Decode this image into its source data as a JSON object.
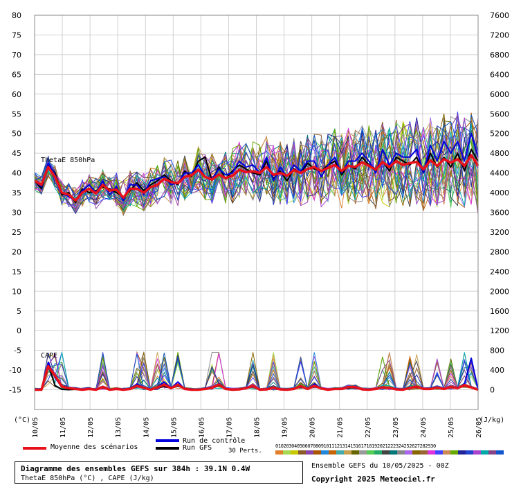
{
  "chart_data": {
    "type": "line",
    "title": "Diagramme des ensembles GEFS sur 384h : 39.1N 0.4W",
    "subtitle": "ThetaE 850hPa (°C) , CAPE (J/kg)",
    "left_axis": {
      "unit_label": "(°C)",
      "ylim": [
        -20,
        80
      ],
      "ticks": [
        80,
        75,
        70,
        65,
        60,
        55,
        50,
        45,
        40,
        35,
        30,
        25,
        20,
        15,
        10,
        5,
        0,
        -5,
        -10,
        -15
      ]
    },
    "right_axis": {
      "unit_label": "(J/kg)",
      "ylim": [
        0,
        7600
      ],
      "ticks": [
        7600,
        7200,
        6800,
        6400,
        6000,
        5600,
        5200,
        4800,
        4400,
        4000,
        3600,
        3200,
        2800,
        2400,
        2000,
        1600,
        1200,
        800,
        400,
        0
      ]
    },
    "x_dates": [
      "10/05",
      "11/05",
      "12/05",
      "13/05",
      "14/05",
      "15/05",
      "16/05",
      "17/05",
      "18/05",
      "19/05",
      "20/05",
      "21/05",
      "22/05",
      "23/05",
      "24/05",
      "25/05",
      "26/05"
    ],
    "panel_labels": {
      "thetae": "ThetaE 850hPa",
      "cape": "CAPE"
    },
    "series": [
      {
        "name": "Moyenne des scénarios",
        "color": "#e8101a",
        "thetae": [
          38,
          37,
          41.5,
          39,
          35,
          34.5,
          33,
          35,
          36,
          34.8,
          37,
          35.5,
          35.8,
          33.7,
          36,
          36,
          35,
          36.4,
          37,
          38.5,
          37.7,
          37.4,
          39,
          39.4,
          40.8,
          39,
          38.3,
          39.6,
          38.7,
          39.3,
          40.8,
          40.2,
          40.4,
          40,
          41.5,
          39.5,
          40,
          39.3,
          40.7,
          40,
          41,
          41.5,
          40.5,
          41.3,
          42,
          40.5,
          41.8,
          41.5,
          42.7,
          41.8,
          40.8,
          42.8,
          41.5,
          43,
          42,
          42.5,
          42.8,
          40.9,
          43.2,
          41.8,
          43.5,
          42.6,
          43.5,
          41.8,
          44.5,
          41.8
        ],
        "cape": [
          -15,
          -15,
          -9,
          -11.5,
          -14.2,
          -14.6,
          -14.8,
          -15,
          -14.8,
          -15,
          -14.3,
          -15,
          -14.8,
          -15,
          -14.8,
          -14,
          -14.5,
          -15,
          -14.4,
          -13.7,
          -14.6,
          -13.7,
          -14.8,
          -15,
          -15,
          -14.8,
          -14.5,
          -13.7,
          -14.8,
          -15,
          -14.9,
          -14.6,
          -14,
          -15,
          -14.9,
          -14.5,
          -14.9,
          -15,
          -14.8,
          -14.1,
          -14.8,
          -14,
          -14.7,
          -15,
          -14.8,
          -14.8,
          -14.3,
          -14.3,
          -14.9,
          -15,
          -14.8,
          -14.4,
          -14.5,
          -14.9,
          -15,
          -14.5,
          -14.2,
          -14.8,
          -14.8,
          -14.5,
          -14.8,
          -14.3,
          -14.6,
          -13.8,
          -14.4,
          -15
        ]
      },
      {
        "name": "Run de contrôle",
        "color": "#0000dd",
        "thetae": [
          38,
          36.5,
          42.5,
          39.5,
          35,
          34,
          33,
          35.5,
          37,
          35,
          38,
          34.5,
          36.5,
          33,
          37,
          37,
          34.5,
          38,
          38.5,
          39,
          37,
          37.5,
          40,
          40,
          42,
          39,
          38.5,
          41,
          39.5,
          40,
          43,
          41.5,
          42,
          40,
          44,
          38,
          41.5,
          39,
          42,
          40.5,
          43,
          43,
          39,
          42,
          44,
          40,
          43,
          43,
          45,
          43,
          40,
          46,
          42,
          45,
          44,
          44,
          46,
          40,
          47,
          43,
          48,
          45,
          48,
          43,
          50,
          44
        ],
        "cape": [
          -15,
          -15,
          -8,
          -12,
          -14.3,
          -14.6,
          -14.9,
          -15,
          -14.8,
          -15,
          -14.3,
          -15,
          -14.8,
          -15,
          -14.8,
          -13.5,
          -14.5,
          -15,
          -14.2,
          -13,
          -14.6,
          -13,
          -14.8,
          -15,
          -15,
          -14.8,
          -14.5,
          -13.5,
          -14.8,
          -15,
          -14.9,
          -14.6,
          -14,
          -15,
          -14.9,
          -14.5,
          -14.9,
          -15,
          -14.8,
          -14,
          -14.8,
          -13.5,
          -14.7,
          -15,
          -14.8,
          -14.8,
          -14.3,
          -14.3,
          -14.9,
          -15,
          -14.8,
          -14.4,
          -14.5,
          -14.9,
          -15,
          -14.5,
          -14.2,
          -14.8,
          -14.8,
          -14.5,
          -14.8,
          -14.3,
          -14.6,
          -13.5,
          -7,
          -15
        ]
      },
      {
        "name": "Run GFS",
        "color": "#000000",
        "thetae": [
          38,
          36,
          42,
          40,
          34.5,
          35,
          32.5,
          36,
          35,
          35.5,
          36.5,
          36,
          35,
          34,
          35.5,
          37.5,
          35.5,
          37,
          38,
          39.5,
          38,
          37,
          40.5,
          39,
          43,
          44,
          38,
          41.5,
          38.5,
          40.5,
          42,
          41,
          40,
          39.5,
          43,
          38.5,
          40.5,
          38,
          41,
          40,
          42.5,
          41,
          40.5,
          42,
          43,
          39.5,
          42,
          41,
          44,
          42,
          41,
          43,
          40.5,
          44,
          43,
          42,
          44,
          40,
          45,
          41.5,
          44,
          41.5,
          45,
          40.5,
          46,
          43
        ],
        "cape": [
          -15,
          -15,
          -8.5,
          -14,
          -14.9,
          -15,
          -14.9,
          -15,
          -14.8,
          -15,
          -14.5,
          -15,
          -14.8,
          -15,
          -14.8,
          -14.2,
          -14.5,
          -15,
          -14.5,
          -14.2,
          -14.6,
          -14,
          -14.8,
          -15,
          -15,
          -14.8,
          -14.5,
          -14,
          -14.8,
          -15,
          -14.9,
          -14.6,
          -14.2,
          -15,
          -14.9,
          -14.5,
          -14.9,
          -15,
          -14.8,
          -14.3,
          -14.8,
          -14.2,
          -14.7,
          -15,
          -14.8,
          -14.8,
          -14.5,
          -14.5,
          -14.9,
          -15,
          -14.8,
          -14.5,
          -14.5,
          -14.9,
          -15,
          -14.5,
          -14.4,
          -14.8,
          -14.8,
          -14.5,
          -14.8,
          -14.4,
          -14.6,
          -14,
          -14.5,
          -15
        ]
      }
    ],
    "perturbations": {
      "label": "30 Perts.",
      "count": 30,
      "numbers": "010203040506070809101112131415161718192021222324252627282930",
      "colors": [
        "#e0802a",
        "#a6d854",
        "#c8c800",
        "#8a5a2b",
        "#8844aa",
        "#aa5500",
        "#2288dd",
        "#c86400",
        "#44aaaa",
        "#c8a050",
        "#666600",
        "#999999",
        "#55cc55",
        "#22aa66",
        "#444444",
        "#007777",
        "#888888",
        "#aa66ee",
        "#886600",
        "#996633",
        "#dd33dd",
        "#4444ff",
        "#cc8855",
        "#66aa00",
        "#222299",
        "#2244cc",
        "#aa44cc",
        "#00aaaa",
        "#884488",
        "#1155cc"
      ]
    },
    "legend": {
      "mean": "Moyenne des scénarios",
      "control": "Run de contrôle",
      "gfs": "Run GFS"
    },
    "footer": {
      "run": "Ensemble GEFS du 10/05/2025 - 00Z",
      "copyright": "Copyright 2025 Meteociel.fr"
    }
  }
}
